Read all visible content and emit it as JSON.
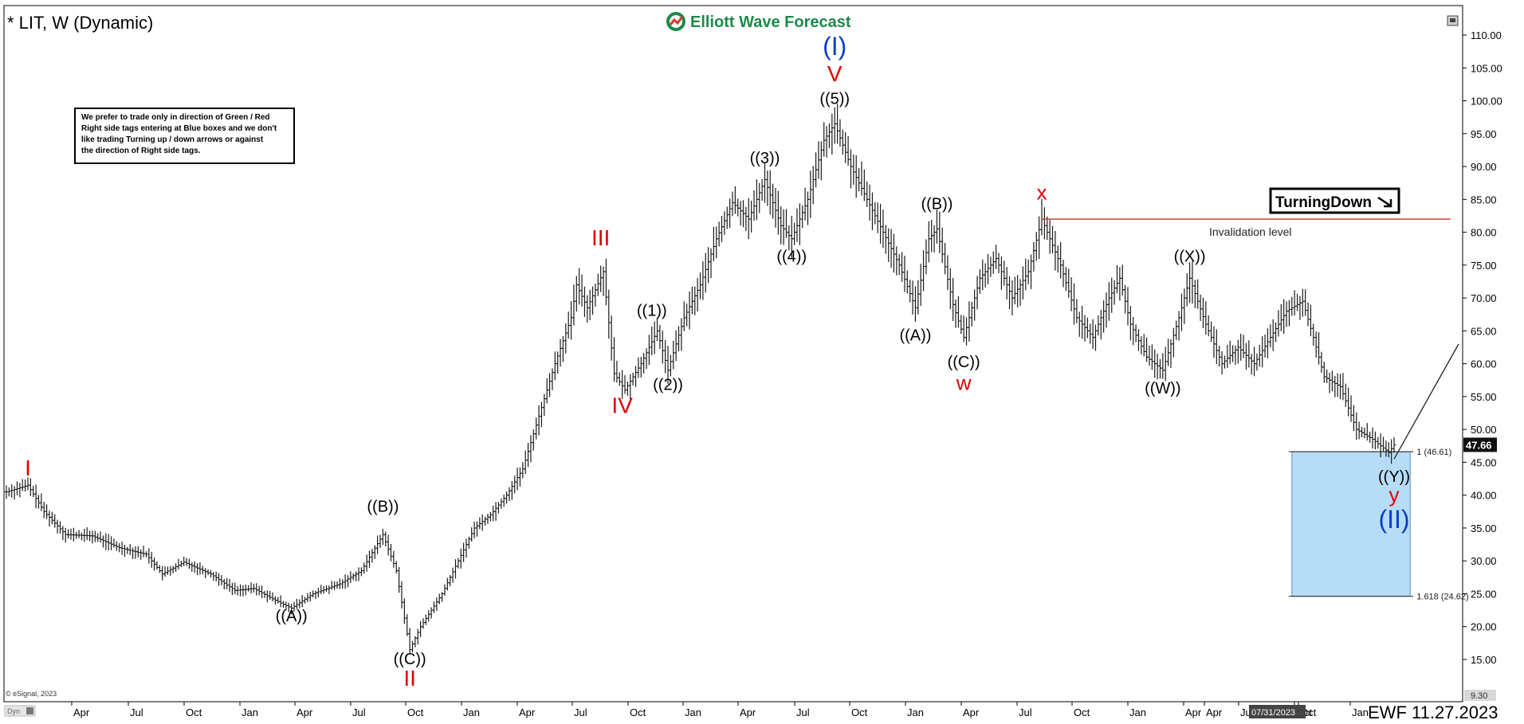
{
  "header": {
    "symbol_title": "* LIT, W (Dynamic)",
    "logo_text": "Elliott Wave Forecast",
    "logo_icon": "globe-arrow-icon"
  },
  "note_box": {
    "lines": [
      "We prefer to trade only in direction of Green / Red",
      "Right side tags entering at Blue boxes and we don't",
      "like trading Turning up / down arrows or against",
      "the direction of Right side tags."
    ]
  },
  "turning_tag": {
    "label": "TurningDown",
    "icon": "arrow-down-right-icon"
  },
  "footer": {
    "copyright": "© eSignal, 2023",
    "dyn": "Dyn",
    "date_label": "EWF 11.27.2023",
    "cursor_date": "07/31/2023",
    "bottom_price": "9.30"
  },
  "colors": {
    "bars": "#1a1a1a",
    "red_label": "#e00000",
    "blue_label": "#0a3fc7",
    "blue_box": "#b7dcf8",
    "invalidation_line": "#c0392b",
    "logo_green": "#1d8a4a"
  },
  "chart_data": {
    "type": "ohlc",
    "timeframe": "Weekly",
    "ylim": [
      9.3,
      112
    ],
    "y_ticks": [
      "110.00",
      "105.00",
      "100.00",
      "95.00",
      "90.00",
      "85.00",
      "80.00",
      "75.00",
      "70.00",
      "65.00",
      "60.00",
      "55.00",
      "50.00",
      "45.00",
      "40.00",
      "35.00",
      "30.00",
      "25.00",
      "20.00",
      "15.00"
    ],
    "x_ticks": [
      "Apr",
      "Jul",
      "Oct",
      "Jan",
      "Apr",
      "Jul",
      "Oct",
      "Jan",
      "Apr",
      "Jul",
      "Oct",
      "Jan",
      "Apr",
      "Jul",
      "Oct",
      "Jan",
      "Apr",
      "Jul",
      "Oct",
      "Jan",
      "Apr",
      "Jul",
      "Oct",
      "Jan",
      "Apr",
      "Oct"
    ],
    "last_price": "47.66",
    "path": [
      [
        0,
        40.5
      ],
      [
        8,
        41.5
      ],
      [
        14,
        37.5
      ],
      [
        22,
        34
      ],
      [
        32,
        33.8
      ],
      [
        42,
        32
      ],
      [
        52,
        31
      ],
      [
        58,
        28
      ],
      [
        66,
        29.8
      ],
      [
        76,
        28
      ],
      [
        85,
        25.5
      ],
      [
        92,
        25.8
      ],
      [
        100,
        24
      ],
      [
        106,
        22.8
      ],
      [
        114,
        25
      ],
      [
        124,
        26.5
      ],
      [
        132,
        28.5
      ],
      [
        140,
        34
      ],
      [
        145,
        28.5
      ],
      [
        150,
        16.5
      ],
      [
        154,
        20
      ],
      [
        162,
        25
      ],
      [
        168,
        30
      ],
      [
        174,
        35
      ],
      [
        180,
        37
      ],
      [
        186,
        40
      ],
      [
        192,
        44
      ],
      [
        198,
        52
      ],
      [
        204,
        60
      ],
      [
        210,
        67
      ],
      [
        212,
        72
      ],
      [
        216,
        68.5
      ],
      [
        222,
        74
      ],
      [
        226,
        58.5
      ],
      [
        230,
        56
      ],
      [
        236,
        60
      ],
      [
        242,
        65
      ],
      [
        246,
        59
      ],
      [
        252,
        67
      ],
      [
        258,
        72
      ],
      [
        264,
        79
      ],
      [
        270,
        84.5
      ],
      [
        276,
        82
      ],
      [
        282,
        88
      ],
      [
        288,
        81
      ],
      [
        292,
        79
      ],
      [
        298,
        85
      ],
      [
        304,
        94
      ],
      [
        308,
        96.5
      ],
      [
        314,
        90
      ],
      [
        320,
        85
      ],
      [
        326,
        80
      ],
      [
        332,
        75
      ],
      [
        338,
        68.5
      ],
      [
        343,
        79
      ],
      [
        346,
        80.5
      ],
      [
        352,
        69
      ],
      [
        356,
        64
      ],
      [
        362,
        73
      ],
      [
        368,
        76
      ],
      [
        374,
        70
      ],
      [
        380,
        74
      ],
      [
        385,
        82
      ],
      [
        392,
        75
      ],
      [
        398,
        67
      ],
      [
        404,
        64
      ],
      [
        410,
        70
      ],
      [
        414,
        73
      ],
      [
        418,
        66
      ],
      [
        424,
        61
      ],
      [
        430,
        59
      ],
      [
        436,
        67
      ],
      [
        440,
        73
      ],
      [
        446,
        66
      ],
      [
        452,
        60
      ],
      [
        458,
        62.5
      ],
      [
        464,
        60
      ],
      [
        470,
        64
      ],
      [
        476,
        68
      ],
      [
        482,
        69.5
      ],
      [
        486,
        64
      ],
      [
        490,
        58
      ],
      [
        496,
        56.5
      ],
      [
        502,
        50
      ],
      [
        508,
        48.5
      ],
      [
        514,
        46.5
      ],
      [
        516,
        47.66
      ]
    ],
    "projection": {
      "from": [
        516,
        45.5
      ],
      "to": [
        540,
        63
      ]
    },
    "blue_box": {
      "x_from": 478,
      "x_to": 522,
      "y_top": 46.61,
      "y_bottom": 24.62
    },
    "fib_levels": [
      {
        "label": "1 (46.61)",
        "value": 46.61
      },
      {
        "label": "1.618 (24.62)",
        "value": 24.62
      }
    ],
    "invalidation": {
      "label": "Invalidation level",
      "value": 82,
      "x_from": 385,
      "x_to": 537
    },
    "annotations": [
      {
        "text": "I",
        "x": 8,
        "y": 43,
        "color": "red"
      },
      {
        "text": "((A))",
        "x": 106,
        "y": 20.8,
        "color": "black"
      },
      {
        "text": "((B))",
        "x": 140,
        "y": 37.5,
        "color": "black"
      },
      {
        "text": "((C))",
        "x": 150,
        "y": 14.3,
        "color": "black"
      },
      {
        "text": "II",
        "x": 150,
        "y": 11.0,
        "color": "red"
      },
      {
        "text": "III",
        "x": 221,
        "y": 78,
        "color": "red"
      },
      {
        "text": "IV",
        "x": 229,
        "y": 52.5,
        "color": "red"
      },
      {
        "text": "((1))",
        "x": 240,
        "y": 67.3,
        "color": "black"
      },
      {
        "text": "((2))",
        "x": 246,
        "y": 56,
        "color": "black"
      },
      {
        "text": "((3))",
        "x": 282,
        "y": 90.5,
        "color": "black"
      },
      {
        "text": "((4))",
        "x": 292,
        "y": 75.5,
        "color": "black"
      },
      {
        "text": "((5))",
        "x": 308,
        "y": 99.5,
        "color": "black"
      },
      {
        "text": "V",
        "x": 308,
        "y": 103,
        "color": "red"
      },
      {
        "text": "(I)",
        "x": 308,
        "y": 107,
        "color": "blue"
      },
      {
        "text": "((B))",
        "x": 346,
        "y": 83.5,
        "color": "black"
      },
      {
        "text": "((A))",
        "x": 338,
        "y": 63.5,
        "color": "black"
      },
      {
        "text": "((C))",
        "x": 356,
        "y": 59.5,
        "color": "black"
      },
      {
        "text": "w",
        "x": 356,
        "y": 56,
        "color": "red"
      },
      {
        "text": "x",
        "x": 385,
        "y": 85,
        "color": "red"
      },
      {
        "text": "((X))",
        "x": 440,
        "y": 75.5,
        "color": "black"
      },
      {
        "text": "((W))",
        "x": 430,
        "y": 55.5,
        "color": "black"
      },
      {
        "text": "((Y))",
        "x": 516,
        "y": 42,
        "color": "black"
      },
      {
        "text": "y",
        "x": 516,
        "y": 39,
        "color": "red"
      },
      {
        "text": "(II)",
        "x": 516,
        "y": 35,
        "color": "blue"
      }
    ]
  }
}
